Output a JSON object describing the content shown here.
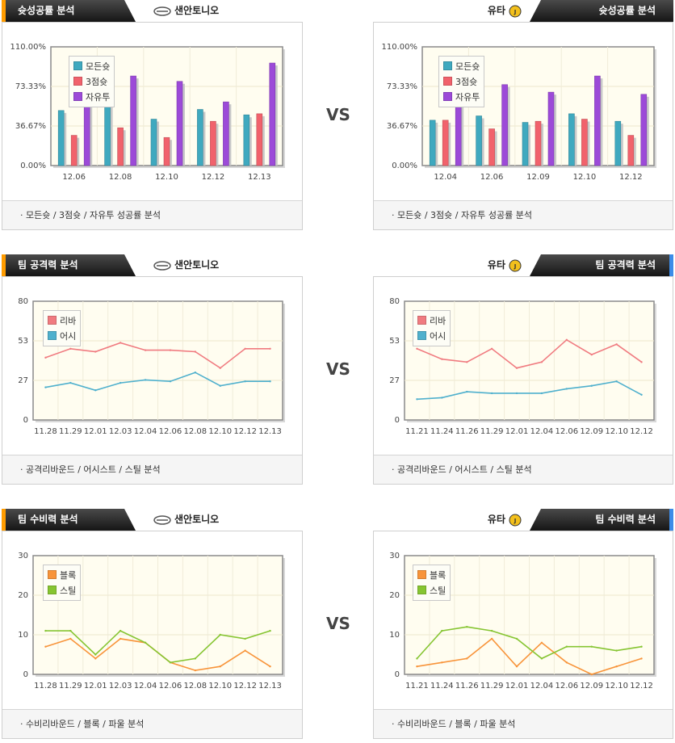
{
  "vs_label": "VS",
  "colors": {
    "all_shot": "#3fa9bf",
    "three_pt": "#f1626c",
    "free_throw": "#9c4ad8",
    "rebound": "#f07b80",
    "assist": "#4fb0cd",
    "block": "#f8943a",
    "steal": "#86c532"
  },
  "sections": [
    {
      "title": "슛성공률 분석",
      "footer": "·  모든슛 / 3점슛 / 자유투 성공률 분석",
      "left_team": "샌안토니오",
      "right_team": "유타",
      "charts": [
        {
          "type": "bar",
          "categories": [
            "12.06",
            "12.08",
            "12.10",
            "12.12",
            "12.13"
          ],
          "y_ticks": [
            "110.00%",
            "73.33%",
            "36.67%",
            "0.00%"
          ],
          "ylim": [
            0,
            110
          ],
          "series": [
            {
              "name": "모든슛",
              "color_key": "all_shot",
              "values": [
                51,
                60,
                43,
                52,
                47
              ]
            },
            {
              "name": "3점슛",
              "color_key": "three_pt",
              "values": [
                28,
                35,
                26,
                41,
                48
              ]
            },
            {
              "name": "자유투",
              "color_key": "free_throw",
              "values": [
                88,
                83,
                78,
                59,
                95
              ]
            }
          ]
        },
        {
          "type": "bar",
          "categories": [
            "12.04",
            "12.06",
            "12.09",
            "12.10",
            "12.12"
          ],
          "y_ticks": [
            "110.00%",
            "73.33%",
            "36.67%",
            "0.00%"
          ],
          "ylim": [
            0,
            110
          ],
          "series": [
            {
              "name": "모든슛",
              "color_key": "all_shot",
              "values": [
                42,
                46,
                40,
                48,
                41
              ]
            },
            {
              "name": "3점슛",
              "color_key": "three_pt",
              "values": [
                42,
                34,
                41,
                43,
                28
              ]
            },
            {
              "name": "자유투",
              "color_key": "free_throw",
              "values": [
                64,
                75,
                68,
                83,
                66
              ]
            }
          ]
        }
      ]
    },
    {
      "title": "팀 공격력 분석",
      "footer": "·  공격리바운드 / 어시스트 / 스틸 분석",
      "left_team": "샌안토니오",
      "right_team": "유타",
      "charts": [
        {
          "type": "line",
          "categories": [
            "11.28",
            "11.29",
            "12.01",
            "12.03",
            "12.04",
            "12.06",
            "12.08",
            "12.10",
            "12.12",
            "12.13"
          ],
          "y_ticks": [
            "80",
            "53",
            "27",
            "0"
          ],
          "ylim": [
            0,
            80
          ],
          "series": [
            {
              "name": "리바",
              "color_key": "rebound",
              "values": [
                42,
                48,
                46,
                52,
                47,
                47,
                46,
                35,
                48,
                48
              ]
            },
            {
              "name": "어시",
              "color_key": "assist",
              "values": [
                22,
                25,
                20,
                25,
                27,
                26,
                32,
                23,
                26,
                26
              ]
            }
          ]
        },
        {
          "type": "line",
          "categories": [
            "11.21",
            "11.24",
            "11.26",
            "11.29",
            "12.01",
            "12.04",
            "12.06",
            "12.09",
            "12.10",
            "12.12"
          ],
          "y_ticks": [
            "80",
            "53",
            "27",
            "0"
          ],
          "ylim": [
            0,
            80
          ],
          "series": [
            {
              "name": "리바",
              "color_key": "rebound",
              "values": [
                48,
                41,
                39,
                48,
                35,
                39,
                54,
                44,
                51,
                39
              ]
            },
            {
              "name": "어시",
              "color_key": "assist",
              "values": [
                14,
                15,
                19,
                18,
                18,
                18,
                21,
                23,
                26,
                17
              ]
            }
          ]
        }
      ]
    },
    {
      "title": "팀 수비력 분석",
      "footer": "·  수비리바운드 / 블록 / 파울 분석",
      "left_team": "샌안토니오",
      "right_team": "유타",
      "charts": [
        {
          "type": "line",
          "categories": [
            "11.28",
            "11.29",
            "12.01",
            "12.03",
            "12.04",
            "12.06",
            "12.08",
            "12.10",
            "12.12",
            "12.13"
          ],
          "y_ticks": [
            "30",
            "20",
            "10",
            "0"
          ],
          "ylim": [
            0,
            30
          ],
          "series": [
            {
              "name": "블록",
              "color_key": "block",
              "values": [
                7,
                9,
                4,
                9,
                8,
                3,
                1,
                2,
                6,
                2
              ]
            },
            {
              "name": "스틸",
              "color_key": "steal",
              "values": [
                11,
                11,
                5,
                11,
                8,
                3,
                4,
                10,
                9,
                11
              ]
            }
          ]
        },
        {
          "type": "line",
          "categories": [
            "11.21",
            "11.24",
            "11.26",
            "11.29",
            "12.01",
            "12.04",
            "12.06",
            "12.09",
            "12.10",
            "12.12"
          ],
          "y_ticks": [
            "30",
            "20",
            "10",
            "0"
          ],
          "ylim": [
            0,
            30
          ],
          "series": [
            {
              "name": "블록",
              "color_key": "block",
              "values": [
                2,
                3,
                4,
                9,
                2,
                8,
                3,
                0,
                2,
                4
              ]
            },
            {
              "name": "스틸",
              "color_key": "steal",
              "values": [
                4,
                11,
                12,
                11,
                9,
                4,
                7,
                7,
                6,
                7
              ]
            }
          ]
        }
      ]
    }
  ]
}
